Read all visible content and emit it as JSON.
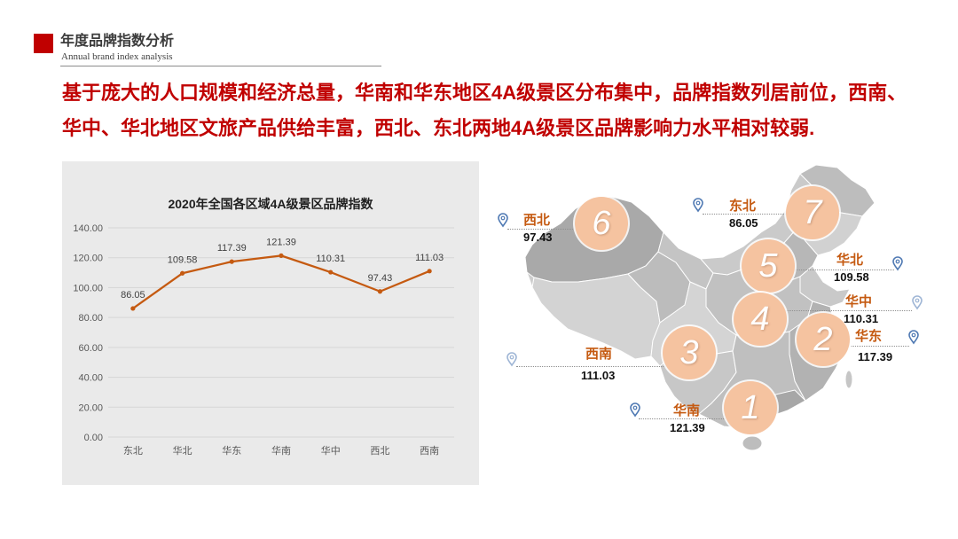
{
  "header": {
    "title": "年度品牌指数分析",
    "subtitle": "Annual brand index analysis"
  },
  "headline": {
    "line1": "基于庞大的人口规模和经济总量，华南和华东地区4A级景区分布集中，品牌指数列居前位，西南、",
    "line2": "华中、华北地区文旅产品供给丰富，西北、东北两地4A级景区品牌影响力水平相对较弱."
  },
  "colors": {
    "accent": "#c00000",
    "series": "#c55a11",
    "region_label": "#c55a11",
    "rank_circle": "#f5c3a0",
    "pin": "#4f79b3",
    "chart_panel": "#eaeaea"
  },
  "icons": {
    "pin": "location-pin-icon"
  },
  "chart_data": {
    "type": "line",
    "title": "2020年全国各区域4A级景区品牌指数",
    "categories": [
      "东北",
      "华北",
      "华东",
      "华南",
      "华中",
      "西北",
      "西南"
    ],
    "values": [
      86.05,
      109.58,
      117.39,
      121.39,
      110.31,
      97.43,
      111.03
    ],
    "data_labels": [
      "86.05",
      "109.58",
      "117.39",
      "121.39",
      "110.31",
      "97.43",
      "111.03"
    ],
    "y_ticks": [
      0,
      20,
      40,
      60,
      80,
      100,
      120,
      140
    ],
    "y_tick_labels": [
      "0.00",
      "20.00",
      "40.00",
      "60.00",
      "80.00",
      "100.00",
      "120.00",
      "140.00"
    ],
    "ylim": [
      0,
      140
    ],
    "xlabel": "",
    "ylabel": "",
    "grid": true,
    "show_legend": false
  },
  "map": {
    "regions": [
      {
        "rank": "6",
        "name": "西北",
        "value": "97.43"
      },
      {
        "rank": "7",
        "name": "东北",
        "value": "86.05"
      },
      {
        "rank": "5",
        "name": "华北",
        "value": "109.58"
      },
      {
        "rank": "4",
        "name": "华中",
        "value": "110.31"
      },
      {
        "rank": "2",
        "name": "华东",
        "value": "117.39"
      },
      {
        "rank": "3",
        "name": "西南",
        "value": "111.03"
      },
      {
        "rank": "1",
        "name": "华南",
        "value": "121.39"
      }
    ]
  }
}
